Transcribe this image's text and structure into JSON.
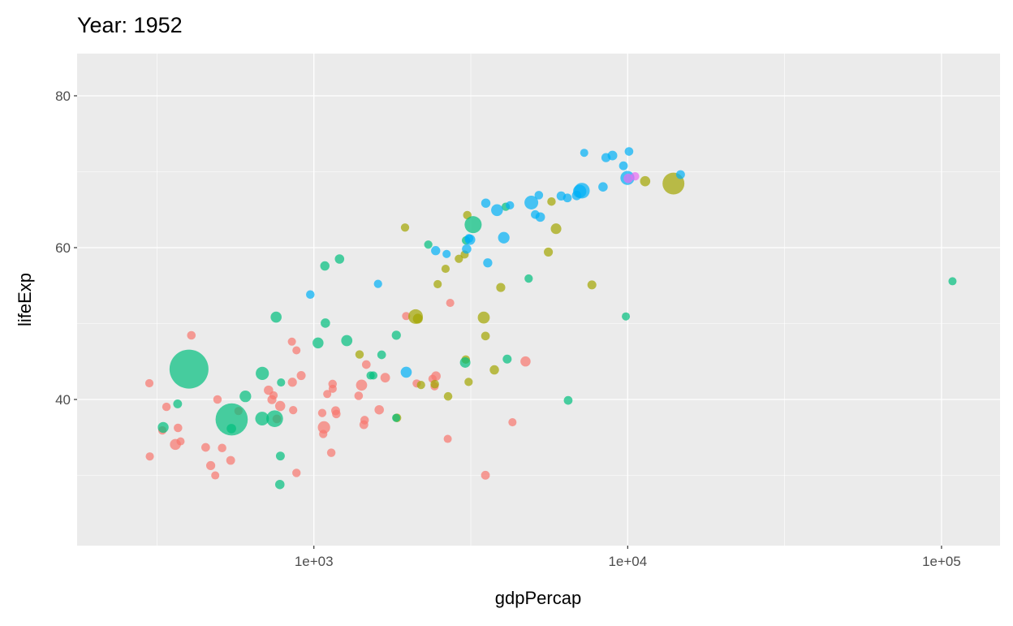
{
  "chart_data": {
    "type": "scatter",
    "title": "Year: 1952",
    "xlabel": "gdpPercap",
    "ylabel": "lifeExp",
    "x_scale": "log10",
    "xlim": [
      176,
      153600
    ],
    "ylim": [
      20.75,
      85.56
    ],
    "x_ticks": [
      {
        "value": 1000,
        "label": "1e+03"
      },
      {
        "value": 10000,
        "label": "1e+04"
      },
      {
        "value": 100000,
        "label": "1e+05"
      }
    ],
    "y_ticks": [
      {
        "value": 40,
        "label": "40"
      },
      {
        "value": 60,
        "label": "60"
      },
      {
        "value": 80,
        "label": "80"
      }
    ],
    "grid": true,
    "legend": "none",
    "size_variable": "pop (millions)",
    "colors": {
      "Africa": "#F8766D",
      "Americas": "#A3A500",
      "Asia": "#00BF7D",
      "Europe": "#00B0F6",
      "Oceania": "#E76BF3"
    },
    "fields": [
      "gdpPercap",
      "lifeExp",
      "popMillions",
      "group"
    ],
    "points": [
      [
        2449,
        43.08,
        9.28,
        "Africa"
      ],
      [
        3521,
        30.02,
        4.23,
        "Africa"
      ],
      [
        1063,
        38.22,
        1.74,
        "Africa"
      ],
      [
        851,
        47.62,
        0.44,
        "Africa"
      ],
      [
        543,
        31.98,
        4.47,
        "Africa"
      ],
      [
        339,
        39.03,
        2.45,
        "Africa"
      ],
      [
        1173,
        38.52,
        5.01,
        "Africa"
      ],
      [
        1071,
        35.46,
        1.29,
        "Africa"
      ],
      [
        1179,
        38.09,
        2.68,
        "Africa"
      ],
      [
        1103,
        40.72,
        0.15,
        "Africa"
      ],
      [
        781,
        39.14,
        14.1,
        "Africa"
      ],
      [
        2126,
        42.11,
        0.85,
        "Africa"
      ],
      [
        1389,
        40.48,
        2.98,
        "Africa"
      ],
      [
        2670,
        34.81,
        0.06,
        "Africa"
      ],
      [
        1419,
        41.89,
        22.2,
        "Africa"
      ],
      [
        376,
        34.48,
        0.22,
        "Africa"
      ],
      [
        329,
        35.93,
        1.44,
        "Africa"
      ],
      [
        362,
        34.08,
        20.9,
        "Africa"
      ],
      [
        4293,
        37.0,
        0.42,
        "Africa"
      ],
      [
        485,
        30.0,
        0.28,
        "Africa"
      ],
      [
        911,
        43.15,
        5.58,
        "Africa"
      ],
      [
        510,
        33.61,
        2.66,
        "Africa"
      ],
      [
        300,
        32.5,
        0.58,
        "Africa"
      ],
      [
        854,
        42.27,
        6.46,
        "Africa"
      ],
      [
        299,
        42.14,
        0.75,
        "Africa"
      ],
      [
        575,
        38.48,
        0.86,
        "Africa"
      ],
      [
        2388,
        42.72,
        1.02,
        "Africa"
      ],
      [
        1443,
        36.68,
        4.76,
        "Africa"
      ],
      [
        369,
        36.26,
        2.92,
        "Africa"
      ],
      [
        452,
        33.69,
        3.84,
        "Africa"
      ],
      [
        744,
        40.54,
        1.02,
        "Africa"
      ],
      [
        1968,
        50.99,
        0.52,
        "Africa"
      ],
      [
        1688,
        42.87,
        9.94,
        "Africa"
      ],
      [
        469,
        31.29,
        6.45,
        "Africa"
      ],
      [
        2424,
        41.73,
        0.49,
        "Africa"
      ],
      [
        762,
        37.44,
        3.38,
        "Africa"
      ],
      [
        1077,
        36.32,
        33.1,
        "Africa"
      ],
      [
        2719,
        52.72,
        0.26,
        "Africa"
      ],
      [
        493,
        40.0,
        2.53,
        "Africa"
      ],
      [
        880,
        46.47,
        0.06,
        "Africa"
      ],
      [
        1451,
        37.28,
        2.76,
        "Africa"
      ],
      [
        880,
        30.33,
        2.14,
        "Africa"
      ],
      [
        1136,
        32.98,
        2.53,
        "Africa"
      ],
      [
        4725,
        45.01,
        14.3,
        "Africa"
      ],
      [
        1615,
        38.64,
        8.5,
        "Africa"
      ],
      [
        1148,
        41.41,
        0.29,
        "Africa"
      ],
      [
        717,
        41.22,
        8.32,
        "Africa"
      ],
      [
        859,
        38.6,
        1.22,
        "Africa"
      ],
      [
        1469,
        44.6,
        3.65,
        "Africa"
      ],
      [
        735,
        39.98,
        5.82,
        "Africa"
      ],
      [
        1147,
        42.04,
        2.67,
        "Africa"
      ],
      [
        407,
        48.45,
        3.08,
        "Africa"
      ],
      [
        5911,
        62.49,
        17.9,
        "Americas"
      ],
      [
        2677,
        40.41,
        2.88,
        "Americas"
      ],
      [
        2109,
        50.92,
        56.6,
        "Americas"
      ],
      [
        11367,
        68.75,
        14.8,
        "Americas"
      ],
      [
        3940,
        54.75,
        6.38,
        "Americas"
      ],
      [
        2144,
        50.64,
        12.4,
        "Americas"
      ],
      [
        2628,
        57.21,
        0.93,
        "Americas"
      ],
      [
        5587,
        59.42,
        6.0,
        "Americas"
      ],
      [
        1398,
        45.93,
        2.49,
        "Americas"
      ],
      [
        3522,
        48.36,
        3.55,
        "Americas"
      ],
      [
        3048,
        45.26,
        2.04,
        "Americas"
      ],
      [
        2428,
        42.02,
        3.15,
        "Americas"
      ],
      [
        1840,
        37.58,
        3.2,
        "Americas"
      ],
      [
        2195,
        41.91,
        1.52,
        "Americas"
      ],
      [
        2898,
        58.53,
        1.43,
        "Americas"
      ],
      [
        3478,
        50.79,
        30.1,
        "Americas"
      ],
      [
        3112,
        42.31,
        1.17,
        "Americas"
      ],
      [
        2480,
        55.19,
        0.94,
        "Americas"
      ],
      [
        1952,
        62.65,
        1.56,
        "Americas"
      ],
      [
        3759,
        43.9,
        8.03,
        "Americas"
      ],
      [
        3082,
        64.28,
        2.23,
        "Americas"
      ],
      [
        3023,
        59.1,
        0.66,
        "Americas"
      ],
      [
        13990,
        68.44,
        157.6,
        "Americas"
      ],
      [
        5717,
        66.07,
        2.25,
        "Americas"
      ],
      [
        7690,
        55.09,
        5.44,
        "Americas"
      ],
      [
        779,
        28.8,
        8.4,
        "Asia"
      ],
      [
        9867,
        50.94,
        0.12,
        "Asia"
      ],
      [
        684,
        37.48,
        46.9,
        "Asia"
      ],
      [
        368,
        39.42,
        4.69,
        "Asia"
      ],
      [
        400,
        44.0,
        556,
        "Asia"
      ],
      [
        3054,
        60.96,
        2.13,
        "Asia"
      ],
      [
        547,
        37.37,
        372,
        "Asia"
      ],
      [
        750,
        37.47,
        82,
        "Asia"
      ],
      [
        3035,
        44.87,
        17.3,
        "Asia"
      ],
      [
        4130,
        45.32,
        5.44,
        "Asia"
      ],
      [
        4087,
        65.39,
        1.62,
        "Asia"
      ],
      [
        3217,
        63.03,
        86.5,
        "Asia"
      ],
      [
        1547,
        43.16,
        0.61,
        "Asia"
      ],
      [
        1088,
        50.06,
        8.87,
        "Asia"
      ],
      [
        1031,
        47.45,
        20.9,
        "Asia"
      ],
      [
        108382,
        55.57,
        0.16,
        "Asia"
      ],
      [
        4835,
        55.93,
        1.44,
        "Asia"
      ],
      [
        1831,
        48.46,
        6.75,
        "Asia"
      ],
      [
        786,
        42.24,
        0.8,
        "Asia"
      ],
      [
        331,
        36.32,
        20.1,
        "Asia"
      ],
      [
        546,
        36.16,
        9.18,
        "Asia"
      ],
      [
        1829,
        37.58,
        0.51,
        "Asia"
      ],
      [
        685,
        43.44,
        41.3,
        "Asia"
      ],
      [
        1273,
        47.75,
        22.4,
        "Asia"
      ],
      [
        6460,
        39.88,
        4.0,
        "Asia"
      ],
      [
        2315,
        60.4,
        1.13,
        "Asia"
      ],
      [
        1084,
        57.59,
        7.98,
        "Asia"
      ],
      [
        1644,
        45.88,
        3.66,
        "Asia"
      ],
      [
        1207,
        58.5,
        8.55,
        "Asia"
      ],
      [
        758,
        50.85,
        21.3,
        "Asia"
      ],
      [
        605,
        40.41,
        26.2,
        "Asia"
      ],
      [
        1516,
        43.16,
        1.03,
        "Asia"
      ],
      [
        782,
        32.55,
        4.96,
        "Asia"
      ],
      [
        1601,
        55.23,
        1.28,
        "Europe"
      ],
      [
        6137,
        66.8,
        6.93,
        "Europe"
      ],
      [
        8343,
        68.0,
        8.73,
        "Europe"
      ],
      [
        974,
        53.82,
        2.79,
        "Europe"
      ],
      [
        2444,
        59.6,
        7.27,
        "Europe"
      ],
      [
        3119,
        61.21,
        3.88,
        "Europe"
      ],
      [
        6876,
        66.87,
        9.13,
        "Europe"
      ],
      [
        9692,
        70.78,
        4.33,
        "Europe"
      ],
      [
        6425,
        66.55,
        4.09,
        "Europe"
      ],
      [
        7030,
        67.41,
        42.5,
        "Europe"
      ],
      [
        7144,
        67.5,
        69.1,
        "Europe"
      ],
      [
        3531,
        65.86,
        7.73,
        "Europe"
      ],
      [
        5264,
        64.03,
        9.5,
        "Europe"
      ],
      [
        7268,
        72.49,
        0.15,
        "Europe"
      ],
      [
        5210,
        66.91,
        2.95,
        "Europe"
      ],
      [
        4931,
        65.94,
        47.7,
        "Europe"
      ],
      [
        2648,
        59.16,
        0.41,
        "Europe"
      ],
      [
        8942,
        72.13,
        10.4,
        "Europe"
      ],
      [
        10095,
        72.67,
        3.33,
        "Europe"
      ],
      [
        4029,
        61.31,
        25.7,
        "Europe"
      ],
      [
        3068,
        59.82,
        8.53,
        "Europe"
      ],
      [
        3145,
        61.05,
        16.6,
        "Europe"
      ],
      [
        3581,
        57.99,
        6.86,
        "Europe"
      ],
      [
        5074,
        64.36,
        3.56,
        "Europe"
      ],
      [
        4215,
        65.57,
        1.49,
        "Europe"
      ],
      [
        3834,
        64.94,
        28.5,
        "Europe"
      ],
      [
        8528,
        71.86,
        7.12,
        "Europe"
      ],
      [
        14734,
        69.62,
        4.82,
        "Europe"
      ],
      [
        1969,
        43.59,
        22.2,
        "Europe"
      ],
      [
        9980,
        69.18,
        50.4,
        "Europe"
      ],
      [
        10040,
        69.12,
        8.69,
        "Oceania"
      ],
      [
        10557,
        69.39,
        1.99,
        "Oceania"
      ]
    ]
  }
}
